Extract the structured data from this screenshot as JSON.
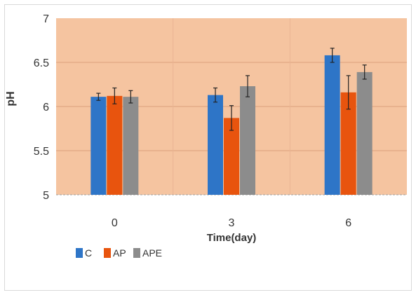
{
  "chart_data": {
    "type": "bar",
    "title": "",
    "xlabel": "Time(day)",
    "ylabel": "pH",
    "categories": [
      "0",
      "3",
      "6"
    ],
    "ylim": [
      5,
      7
    ],
    "yticks": [
      "5",
      "5.5",
      "6",
      "6.5",
      "7"
    ],
    "grid": true,
    "legend_position": "bottom-left",
    "series": [
      {
        "name": "C",
        "color": "#2e75c7",
        "values": [
          6.11,
          6.13,
          6.58
        ],
        "errors": [
          0.04,
          0.08,
          0.08
        ]
      },
      {
        "name": "AP",
        "color": "#e8540e",
        "values": [
          6.12,
          5.87,
          6.16
        ],
        "errors": [
          0.09,
          0.14,
          0.19
        ]
      },
      {
        "name": "APE",
        "color": "#8c8c8c",
        "values": [
          6.11,
          6.23,
          6.39
        ],
        "errors": [
          0.07,
          0.12,
          0.08
        ]
      }
    ],
    "plot_background": "#f5c4a0"
  }
}
